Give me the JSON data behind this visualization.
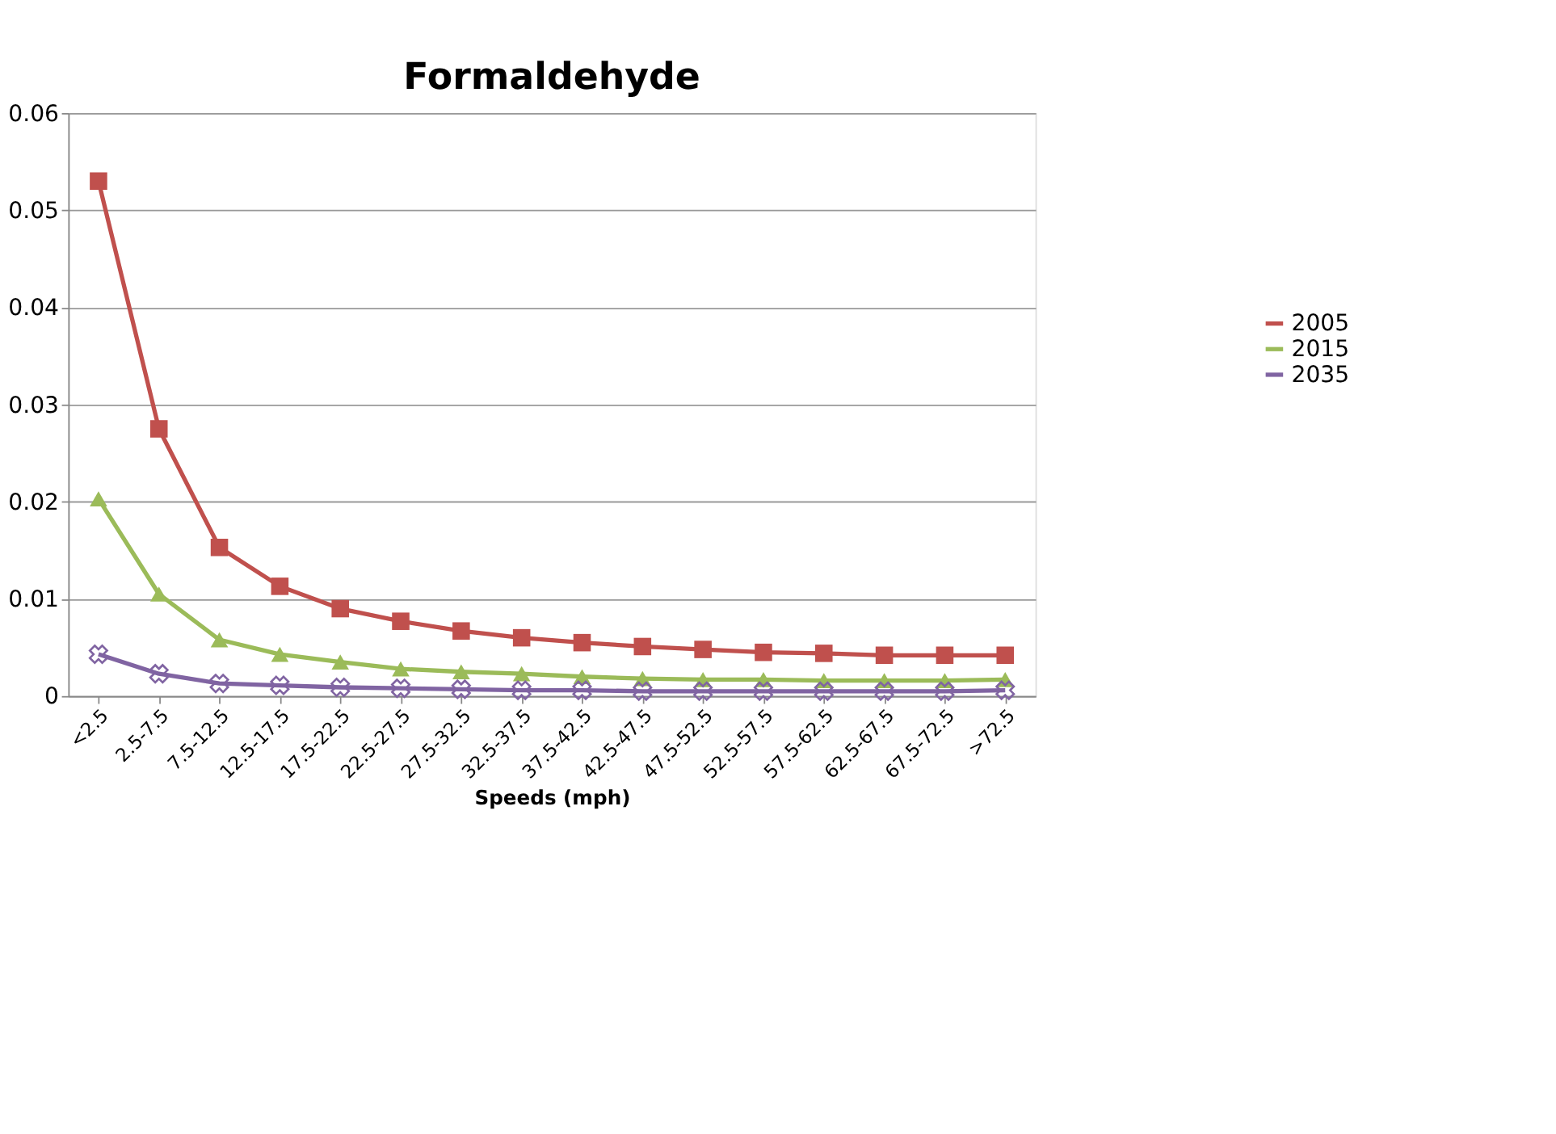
{
  "chart_data": {
    "type": "line",
    "title": "Formaldehyde",
    "xlabel": "Speeds (mph)",
    "categories": [
      "<2.5",
      "2.5-7.5",
      "7.5-12.5",
      "12.5-17.5",
      "17.5-22.5",
      "22.5-27.5",
      "27.5-32.5",
      "32.5-37.5",
      "37.5-42.5",
      "42.5-47.5",
      "47.5-52.5",
      "52.5-57.5",
      "57.5-62.5",
      "62.5-67.5",
      "67.5-72.5",
      ">72.5"
    ],
    "series": [
      {
        "name": "2005",
        "color": "#c0504d",
        "marker": "square",
        "values": [
          0.053,
          0.0275,
          0.0153,
          0.0113,
          0.009,
          0.0077,
          0.0067,
          0.006,
          0.0055,
          0.0051,
          0.0048,
          0.0045,
          0.0044,
          0.0042,
          0.0042,
          0.0042
        ]
      },
      {
        "name": "2015",
        "color": "#9bbb59",
        "marker": "triangle",
        "values": [
          0.0203,
          0.0105,
          0.0058,
          0.0043,
          0.0035,
          0.0028,
          0.0025,
          0.0023,
          0.002,
          0.0018,
          0.0017,
          0.0017,
          0.0016,
          0.0016,
          0.0016,
          0.0017
        ]
      },
      {
        "name": "2035",
        "color": "#8064a2",
        "marker": "cross",
        "values": [
          0.0043,
          0.0023,
          0.0013,
          0.0011,
          0.0009,
          0.0008,
          0.0007,
          0.0006,
          0.0006,
          0.0005,
          0.0005,
          0.0005,
          0.0005,
          0.0005,
          0.0005,
          0.0006
        ]
      }
    ],
    "ylim": [
      0,
      0.06
    ],
    "yticks": [
      0,
      0.01,
      0.02,
      0.03,
      0.04,
      0.05,
      0.06
    ],
    "grid": "y",
    "legend": "right",
    "line_style": "solid"
  }
}
